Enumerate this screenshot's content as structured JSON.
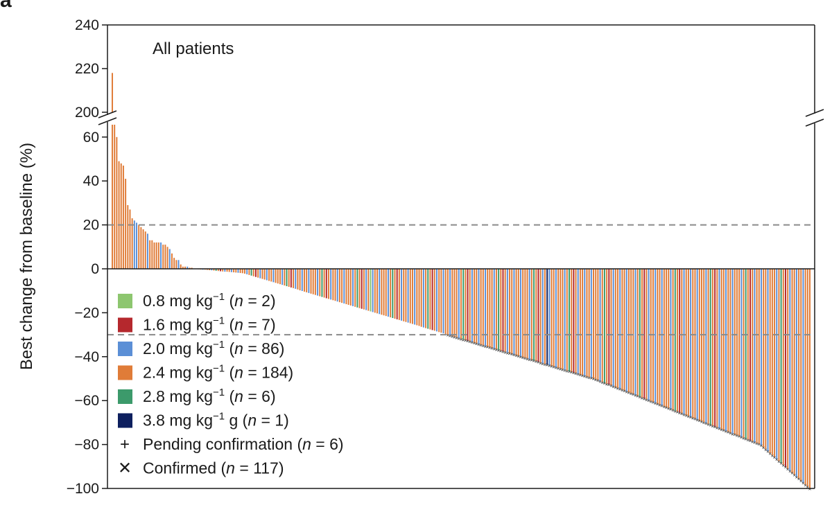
{
  "panel_letter": "a",
  "chart_data": {
    "type": "bar",
    "title": "All patients",
    "xlabel": "",
    "ylabel": "Best change from baseline (%)",
    "ylim": [
      -100,
      240
    ],
    "axis_break": {
      "lower_max": 65,
      "upper_min": 200,
      "upper_max": 240
    },
    "yticks_lower": [
      "60",
      "40",
      "20",
      "0",
      "−20",
      "−40",
      "−60",
      "−80",
      "−100"
    ],
    "yticks_upper": [
      "240",
      "220",
      "200"
    ],
    "yticks_lower_values": [
      60,
      40,
      20,
      0,
      -20,
      -40,
      -60,
      -80,
      -100
    ],
    "yticks_upper_values": [
      240,
      220,
      200
    ],
    "reference_lines": [
      20,
      -30
    ],
    "dose_colors": {
      "0.8": "#8dc66f",
      "1.6": "#b5282d",
      "2.0": "#5b8fd6",
      "2.4": "#e07c38",
      "2.8": "#3c9a6b",
      "3.8": "#0d1f5e"
    },
    "legend": [
      {
        "key": "0.8",
        "label_pre": "0.8 mg kg",
        "sup": "−1",
        "label_mid": " (",
        "italic": "n",
        "label_post": " = 2)"
      },
      {
        "key": "1.6",
        "label_pre": "1.6 mg kg",
        "sup": "−1",
        "label_mid": " (",
        "italic": "n",
        "label_post": " = 7)"
      },
      {
        "key": "2.0",
        "label_pre": "2.0 mg kg",
        "sup": "−1",
        "label_mid": " (",
        "italic": "n",
        "label_post": " = 86)"
      },
      {
        "key": "2.4",
        "label_pre": "2.4 mg kg",
        "sup": "−1",
        "label_mid": " (",
        "italic": "n",
        "label_post": " = 184)"
      },
      {
        "key": "2.8",
        "label_pre": "2.8 mg kg",
        "sup": "−1",
        "label_mid": " (",
        "italic": "n",
        "label_post": " = 6)"
      },
      {
        "key": "3.8",
        "label_pre": "3.8 mg kg",
        "sup": "−1",
        "label_mid": " g (",
        "italic": "n",
        "label_post": " = 1)"
      }
    ],
    "marker_legend": [
      {
        "symbol": "+",
        "label_pre": "Pending confirmation (",
        "italic": "n",
        "label_post": " = 6)"
      },
      {
        "symbol": "✕",
        "label_pre": "Confirmed (",
        "italic": "n",
        "label_post": " = 117)"
      }
    ],
    "series": [
      {
        "dose": "2.4",
        "values": [
          218,
          66,
          60,
          49,
          48,
          47,
          41,
          29,
          27,
          23,
          20,
          19,
          18,
          17,
          13,
          13,
          12,
          12,
          12,
          11,
          11,
          10,
          7,
          5,
          4,
          2,
          1,
          1,
          0.5,
          0.5
        ]
      },
      {
        "dose": "2.0",
        "values": [
          22,
          21,
          16,
          12,
          9,
          4,
          1
        ]
      },
      {
        "dose": "mixed_negative",
        "count": 280,
        "min": -100,
        "max": 0,
        "pattern": [
          "2.4",
          "2.0",
          "2.4",
          "2.4",
          "2.0",
          "2.4",
          "2.4",
          "2.4",
          "2.0",
          "2.4",
          "2.8",
          "2.4",
          "1.6",
          "2.4",
          "2.0",
          "2.4"
        ]
      }
    ]
  }
}
